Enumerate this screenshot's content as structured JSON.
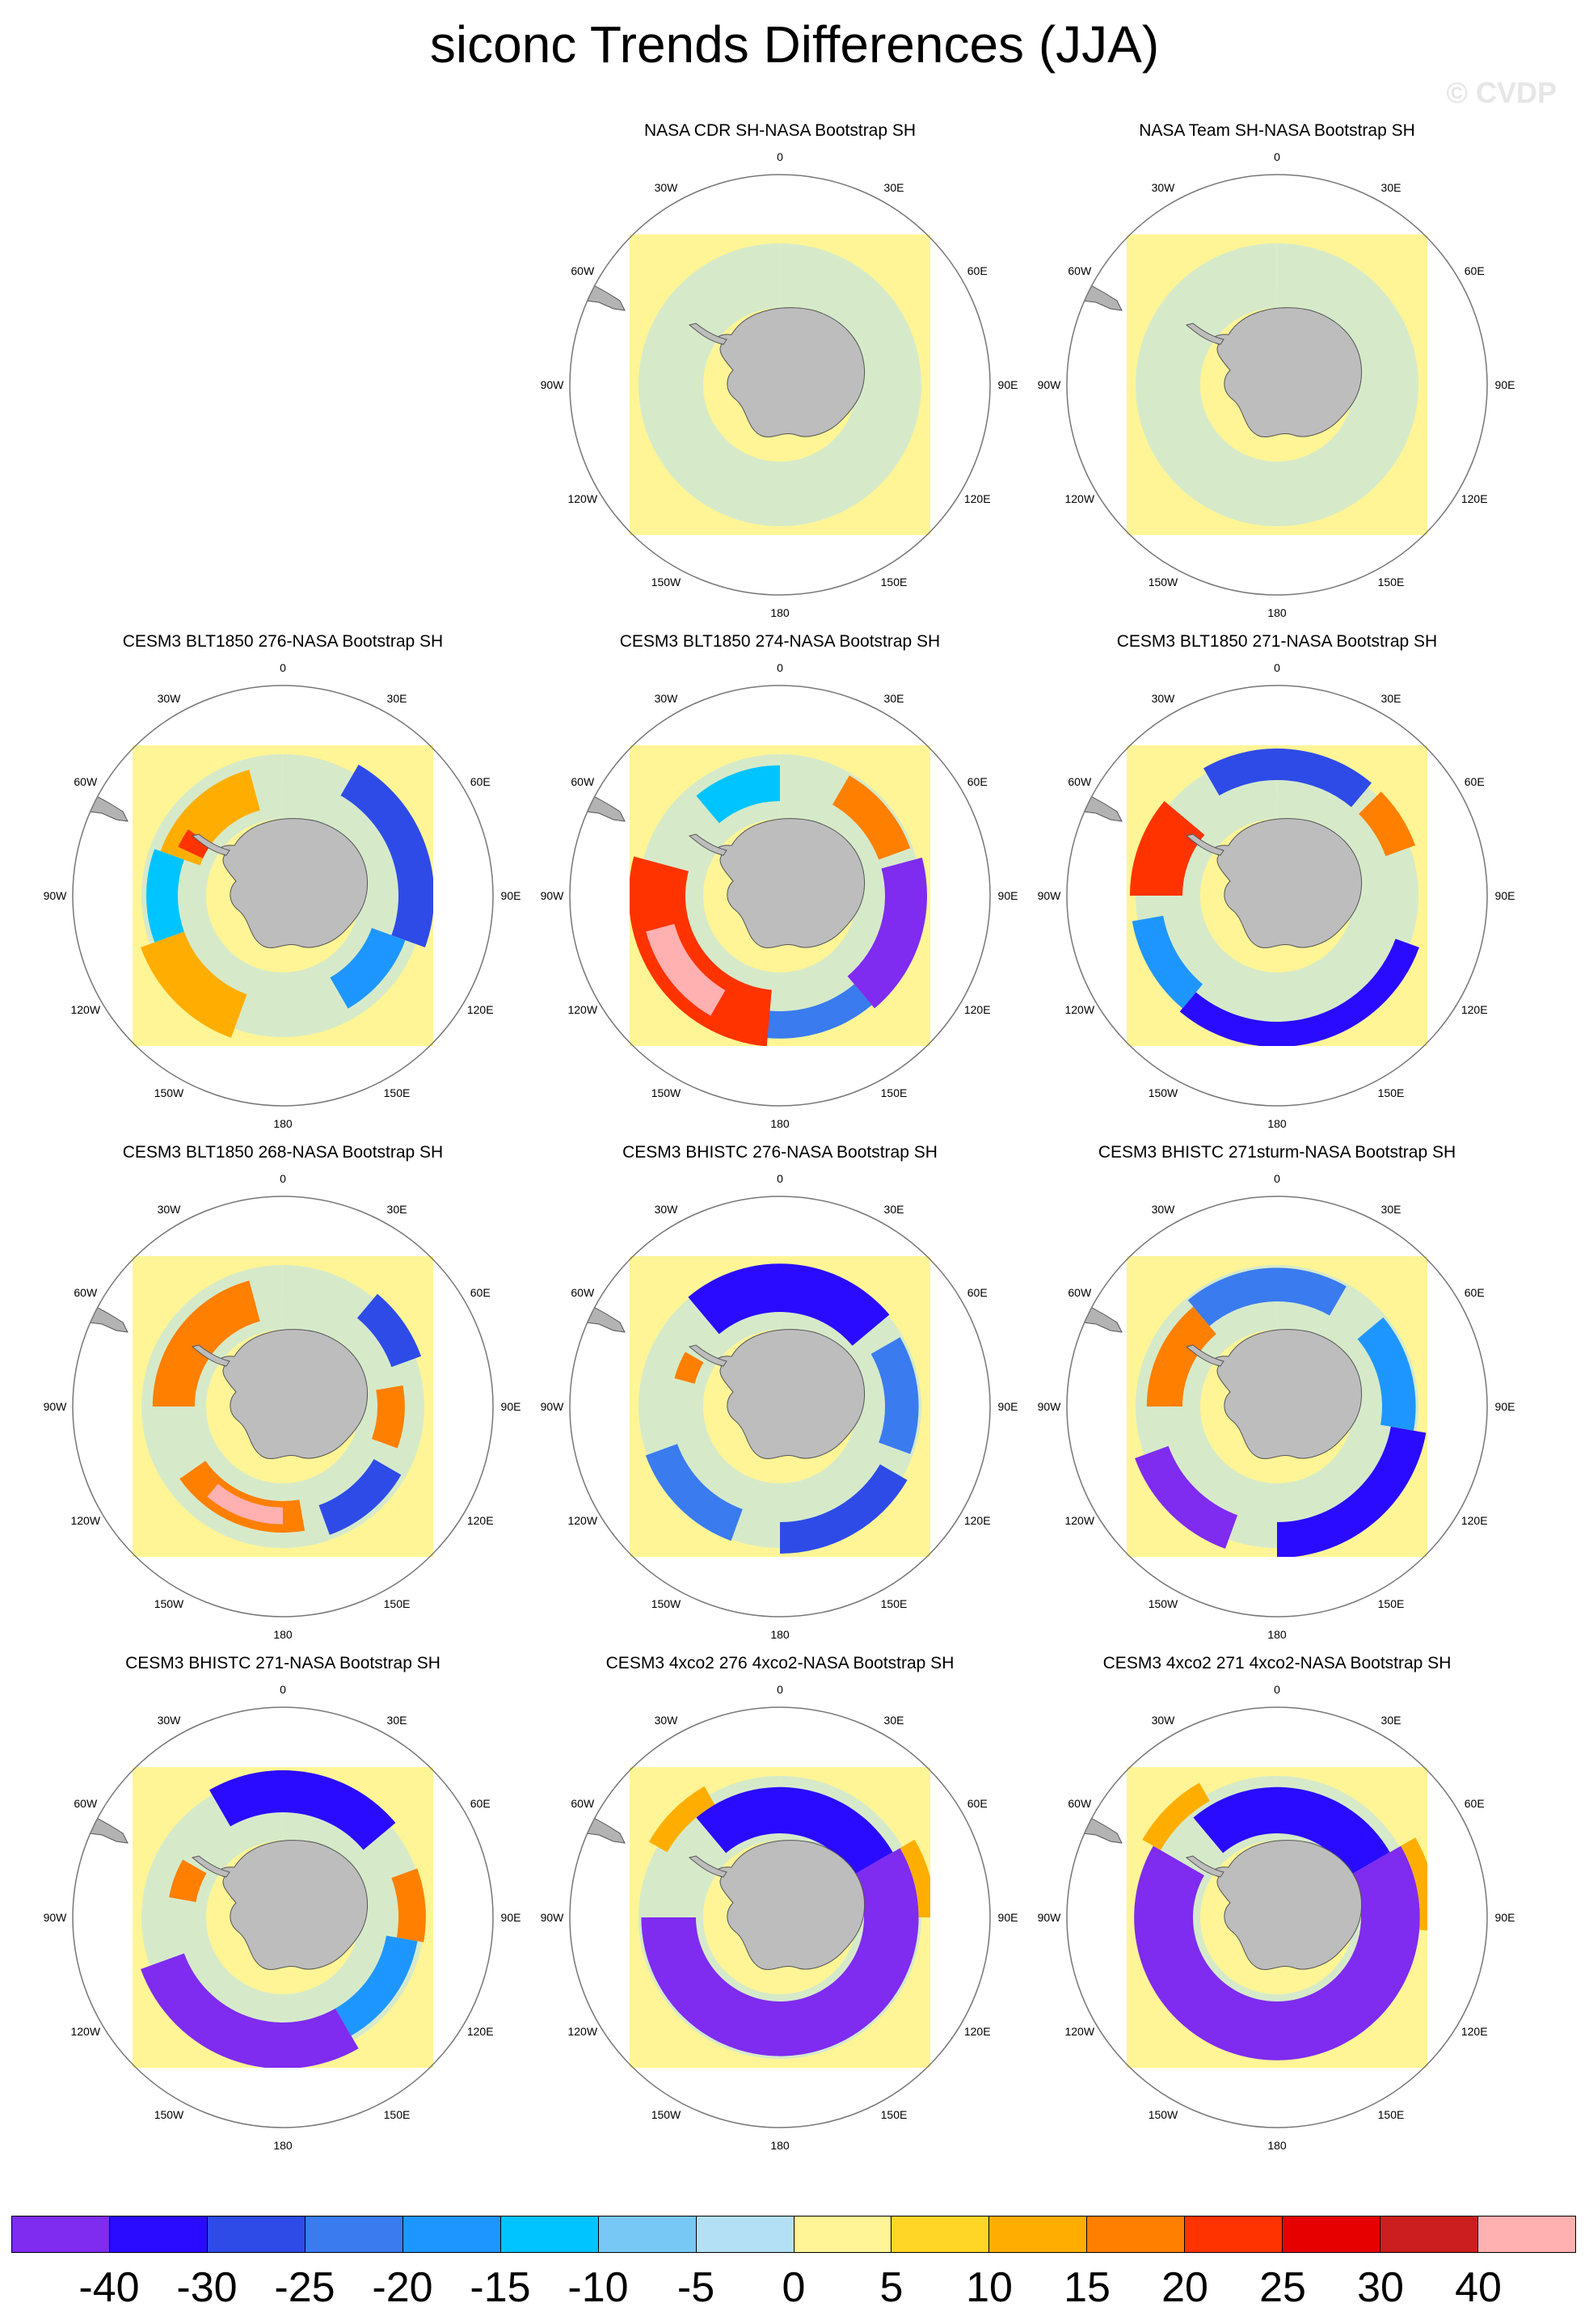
{
  "title": "siconc Trends Differences (JJA)",
  "watermark": "© CVDP",
  "lon_labels": [
    {
      "text": "0",
      "lon": 0
    },
    {
      "text": "30E",
      "lon": 30
    },
    {
      "text": "60E",
      "lon": 60
    },
    {
      "text": "90E",
      "lon": 90
    },
    {
      "text": "120E",
      "lon": 120
    },
    {
      "text": "150E",
      "lon": 150
    },
    {
      "text": "180",
      "lon": 180
    },
    {
      "text": "150W",
      "lon": 210
    },
    {
      "text": "120W",
      "lon": 240
    },
    {
      "text": "90W",
      "lon": 270
    },
    {
      "text": "60W",
      "lon": 300
    },
    {
      "text": "30W",
      "lon": 330
    }
  ],
  "panels": [
    {
      "title": "NASA CDR SH-NASA Bootstrap SH",
      "features": []
    },
    {
      "title": "NASA Team SH-NASA Bootstrap SH",
      "features": [
        {
          "c": 7,
          "a1": 0,
          "a2": 360,
          "r1": 0.42,
          "r2": 0.6
        }
      ]
    },
    {
      "title": "CESM3 BLT1850 276-NASA Bootstrap SH",
      "features": [
        {
          "c": 10,
          "a1": 290,
          "a2": 345,
          "r1": 0.42,
          "r2": 0.62
        },
        {
          "c": 12,
          "a1": 295,
          "a2": 305,
          "r1": 0.42,
          "r2": 0.55
        },
        {
          "c": 2,
          "a1": 30,
          "a2": 110,
          "r1": 0.55,
          "r2": 0.72
        },
        {
          "c": 4,
          "a1": 110,
          "a2": 150,
          "r1": 0.45,
          "r2": 0.62
        },
        {
          "c": 10,
          "a1": 200,
          "a2": 250,
          "r1": 0.5,
          "r2": 0.72
        },
        {
          "c": 5,
          "a1": 250,
          "a2": 290,
          "r1": 0.5,
          "r2": 0.65
        }
      ]
    },
    {
      "title": "CESM3 BLT1850 274-NASA Bootstrap SH",
      "features": [
        {
          "c": 5,
          "a1": 320,
          "a2": 360,
          "r1": 0.45,
          "r2": 0.62
        },
        {
          "c": 11,
          "a1": 30,
          "a2": 70,
          "r1": 0.5,
          "r2": 0.66
        },
        {
          "c": 0,
          "a1": 75,
          "a2": 140,
          "r1": 0.5,
          "r2": 0.7
        },
        {
          "c": 3,
          "a1": 140,
          "a2": 190,
          "r1": 0.55,
          "r2": 0.68
        },
        {
          "c": 12,
          "a1": 185,
          "a2": 285,
          "r1": 0.45,
          "r2": 0.72
        },
        {
          "c": 15,
          "a1": 210,
          "a2": 255,
          "r1": 0.52,
          "r2": 0.66
        }
      ]
    },
    {
      "title": "CESM3 BLT1850 271-NASA Bootstrap SH",
      "features": [
        {
          "c": 12,
          "a1": 270,
          "a2": 310,
          "r1": 0.45,
          "r2": 0.7
        },
        {
          "c": 11,
          "a1": 45,
          "a2": 70,
          "r1": 0.55,
          "r2": 0.7
        },
        {
          "c": 2,
          "a1": 330,
          "a2": 40,
          "r1": 0.55,
          "r2": 0.7
        },
        {
          "c": 1,
          "a1": 110,
          "a2": 220,
          "r1": 0.6,
          "r2": 0.72
        },
        {
          "c": 4,
          "a1": 220,
          "a2": 260,
          "r1": 0.55,
          "r2": 0.7
        }
      ]
    },
    {
      "title": "CESM3 BLT1850 268-NASA Bootstrap SH",
      "features": [
        {
          "c": 11,
          "a1": 270,
          "a2": 345,
          "r1": 0.42,
          "r2": 0.62
        },
        {
          "c": 2,
          "a1": 40,
          "a2": 70,
          "r1": 0.55,
          "r2": 0.7
        },
        {
          "c": 11,
          "a1": 80,
          "a2": 110,
          "r1": 0.45,
          "r2": 0.58
        },
        {
          "c": 2,
          "a1": 120,
          "a2": 160,
          "r1": 0.5,
          "r2": 0.65
        },
        {
          "c": 11,
          "a1": 170,
          "a2": 235,
          "r1": 0.45,
          "r2": 0.6
        },
        {
          "c": 15,
          "a1": 180,
          "a2": 220,
          "r1": 0.48,
          "r2": 0.56
        }
      ]
    },
    {
      "title": "CESM3 BHISTC 276-NASA Bootstrap SH",
      "features": [
        {
          "c": 1,
          "a1": 320,
          "a2": 50,
          "r1": 0.45,
          "r2": 0.68
        },
        {
          "c": 3,
          "a1": 60,
          "a2": 110,
          "r1": 0.5,
          "r2": 0.66
        },
        {
          "c": 2,
          "a1": 120,
          "a2": 180,
          "r1": 0.55,
          "r2": 0.7
        },
        {
          "c": 3,
          "a1": 200,
          "a2": 250,
          "r1": 0.52,
          "r2": 0.68
        },
        {
          "c": 11,
          "a1": 285,
          "a2": 300,
          "r1": 0.42,
          "r2": 0.52
        }
      ]
    },
    {
      "title": "CESM3 BHISTC 271sturm-NASA Bootstrap SH",
      "features": [
        {
          "c": 11,
          "a1": 270,
          "a2": 320,
          "r1": 0.45,
          "r2": 0.62
        },
        {
          "c": 3,
          "a1": 320,
          "a2": 30,
          "r1": 0.5,
          "r2": 0.66
        },
        {
          "c": 1,
          "a1": 100,
          "a2": 180,
          "r1": 0.55,
          "r2": 0.72
        },
        {
          "c": 0,
          "a1": 200,
          "a2": 250,
          "r1": 0.55,
          "r2": 0.72
        },
        {
          "c": 4,
          "a1": 50,
          "a2": 100,
          "r1": 0.5,
          "r2": 0.66
        }
      ]
    },
    {
      "title": "CESM3 BHISTC 271-NASA Bootstrap SH",
      "features": [
        {
          "c": 1,
          "a1": 330,
          "a2": 50,
          "r1": 0.5,
          "r2": 0.7
        },
        {
          "c": 11,
          "a1": 280,
          "a2": 300,
          "r1": 0.42,
          "r2": 0.55
        },
        {
          "c": 11,
          "a1": 70,
          "a2": 100,
          "r1": 0.55,
          "r2": 0.68
        },
        {
          "c": 0,
          "a1": 150,
          "a2": 250,
          "r1": 0.5,
          "r2": 0.72
        },
        {
          "c": 4,
          "a1": 100,
          "a2": 150,
          "r1": 0.5,
          "r2": 0.65
        }
      ]
    },
    {
      "title": "CESM3 4xco2 276 4xco2-NASA Bootstrap SH",
      "features": [
        {
          "c": 1,
          "a1": 320,
          "a2": 60,
          "r1": 0.4,
          "r2": 0.62
        },
        {
          "c": 0,
          "a1": 60,
          "a2": 270,
          "r1": 0.4,
          "r2": 0.66
        },
        {
          "c": 10,
          "a1": 300,
          "a2": 330,
          "r1": 0.62,
          "r2": 0.72
        },
        {
          "c": 10,
          "a1": 60,
          "a2": 90,
          "r1": 0.66,
          "r2": 0.74
        }
      ]
    },
    {
      "title": "CESM3 4xco2 271 4xco2-NASA Bootstrap SH",
      "features": [
        {
          "c": 1,
          "a1": 320,
          "a2": 60,
          "r1": 0.4,
          "r2": 0.62
        },
        {
          "c": 0,
          "a1": 60,
          "a2": 300,
          "r1": 0.4,
          "r2": 0.68
        },
        {
          "c": 10,
          "a1": 300,
          "a2": 330,
          "r1": 0.64,
          "r2": 0.74
        },
        {
          "c": 10,
          "a1": 60,
          "a2": 95,
          "r1": 0.68,
          "r2": 0.76
        }
      ]
    }
  ],
  "colorbar": {
    "colors": [
      "#7f2bf0",
      "#2a0bff",
      "#2e4be8",
      "#3a7bf0",
      "#1e96ff",
      "#00c4ff",
      "#78c8f5",
      "#b4e0f5",
      "#fff596",
      "#ffd626",
      "#ffae00",
      "#ff7f00",
      "#ff3300",
      "#e60000",
      "#cc1e1e",
      "#ffb0b0"
    ],
    "labels": [
      "-40",
      "-30",
      "-25",
      "-20",
      "-15",
      "-10",
      "-5",
      "0",
      "5",
      "10",
      "15",
      "20",
      "25",
      "30",
      "40"
    ]
  }
}
